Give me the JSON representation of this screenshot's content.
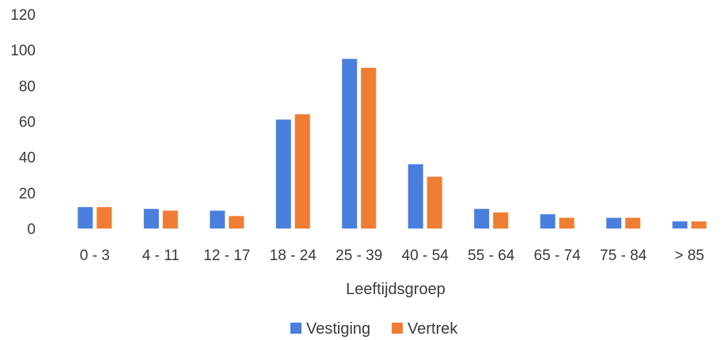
{
  "chart_data": {
    "type": "bar",
    "categories": [
      "0 - 3",
      "4 - 11",
      "12 - 17",
      "18 - 24",
      "25 - 39",
      "40 - 54",
      "55 - 64",
      "65 - 74",
      "75 - 84",
      "> 85"
    ],
    "series": [
      {
        "name": "Vestiging",
        "color": "#4a7fde",
        "values": [
          12,
          11,
          10,
          61,
          95,
          36,
          11,
          8,
          6,
          4
        ]
      },
      {
        "name": "Vertrek",
        "color": "#ef7d33",
        "values": [
          12,
          10,
          7,
          64,
          90,
          29,
          9,
          6,
          6,
          4
        ]
      }
    ],
    "xlabel": "Leeftijdsgroep",
    "ylabel": "",
    "ylim": [
      0,
      120
    ],
    "yticks": [
      "0",
      "20",
      "40",
      "60",
      "80",
      "100",
      "120"
    ],
    "grid": false,
    "legend_position": "bottom"
  }
}
